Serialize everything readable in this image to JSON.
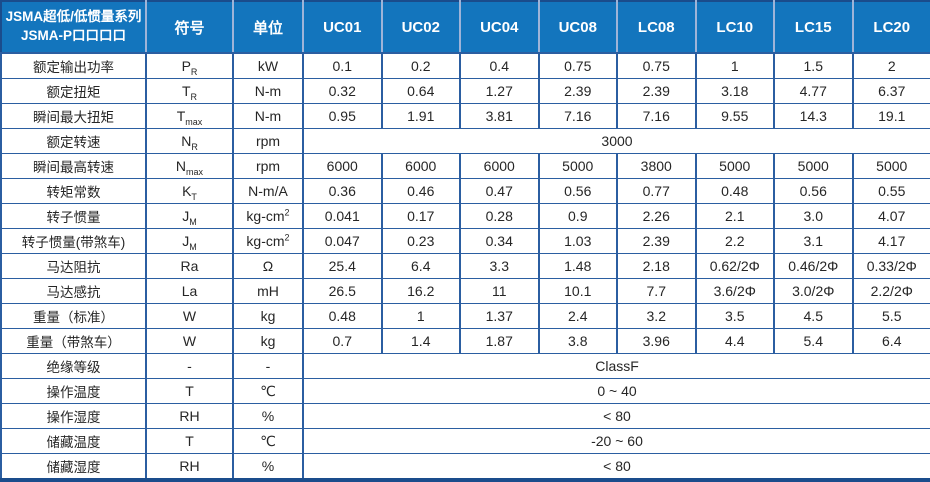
{
  "colors": {
    "header_bg": "#1375bd",
    "header_text": "#ffffff",
    "grid_border": "#2b5ea1",
    "outer_border": "#1a4c8c",
    "header_divider": "#9fb4d8",
    "body_text": "#262626"
  },
  "table": {
    "corner": {
      "line1": "JSMA超低/低惯量系列",
      "line2": "JSMA-P口口口口"
    },
    "symbol_header": "符号",
    "unit_header": "单位",
    "models": [
      "UC01",
      "UC02",
      "UC04",
      "UC08",
      "LC08",
      "LC10",
      "LC15",
      "LC20"
    ],
    "rows": [
      {
        "label": "额定输出功率",
        "sym": "P",
        "sym_sub": "R",
        "unit": "kW",
        "unit_sup": "",
        "values": [
          "0.1",
          "0.2",
          "0.4",
          "0.75",
          "0.75",
          "1",
          "1.5",
          "2"
        ]
      },
      {
        "label": "额定扭矩",
        "sym": "T",
        "sym_sub": "R",
        "unit": "N-m",
        "unit_sup": "",
        "values": [
          "0.32",
          "0.64",
          "1.27",
          "2.39",
          "2.39",
          "3.18",
          "4.77",
          "6.37"
        ]
      },
      {
        "label": "瞬间最大扭矩",
        "sym": "T",
        "sym_sub": "max",
        "unit": "N-m",
        "unit_sup": "",
        "values": [
          "0.95",
          "1.91",
          "3.81",
          "7.16",
          "7.16",
          "9.55",
          "14.3",
          "19.1"
        ]
      },
      {
        "label": "额定转速",
        "sym": "N",
        "sym_sub": "R",
        "unit": "rpm",
        "unit_sup": "",
        "span": "3000"
      },
      {
        "label": "瞬间最高转速",
        "sym": "N",
        "sym_sub": "max",
        "unit": "rpm",
        "unit_sup": "",
        "values": [
          "6000",
          "6000",
          "6000",
          "5000",
          "3800",
          "5000",
          "5000",
          "5000"
        ]
      },
      {
        "label": "转矩常数",
        "sym": "K",
        "sym_sub": "T",
        "unit": "N-m/A",
        "unit_sup": "",
        "values": [
          "0.36",
          "0.46",
          "0.47",
          "0.56",
          "0.77",
          "0.48",
          "0.56",
          "0.55"
        ]
      },
      {
        "label": "转子惯量",
        "sym": "J",
        "sym_sub": "M",
        "unit": "kg-cm",
        "unit_sup": "2",
        "values": [
          "0.041",
          "0.17",
          "0.28",
          "0.9",
          "2.26",
          "2.1",
          "3.0",
          "4.07"
        ]
      },
      {
        "label": "转子惯量(带煞车)",
        "sym": "J",
        "sym_sub": "M",
        "unit": "kg-cm",
        "unit_sup": "2",
        "values": [
          "0.047",
          "0.23",
          "0.34",
          "1.03",
          "2.39",
          "2.2",
          "3.1",
          "4.17"
        ]
      },
      {
        "label": "马达阻抗",
        "sym": "Ra",
        "sym_sub": "",
        "unit": "Ω",
        "unit_sup": "",
        "values": [
          "25.4",
          "6.4",
          "3.3",
          "1.48",
          "2.18",
          "0.62/2Φ",
          "0.46/2Φ",
          "0.33/2Φ"
        ]
      },
      {
        "label": "马达感抗",
        "sym": "La",
        "sym_sub": "",
        "unit": "mH",
        "unit_sup": "",
        "values": [
          "26.5",
          "16.2",
          "11",
          "10.1",
          "7.7",
          "3.6/2Φ",
          "3.0/2Φ",
          "2.2/2Φ"
        ]
      },
      {
        "label": "重量（标准）",
        "sym": "W",
        "sym_sub": "",
        "unit": "kg",
        "unit_sup": "",
        "values": [
          "0.48",
          "1",
          "1.37",
          "2.4",
          "3.2",
          "3.5",
          "4.5",
          "5.5"
        ]
      },
      {
        "label": "重量（带煞车）",
        "sym": "W",
        "sym_sub": "",
        "unit": "kg",
        "unit_sup": "",
        "values": [
          "0.7",
          "1.4",
          "1.87",
          "3.8",
          "3.96",
          "4.4",
          "5.4",
          "6.4"
        ]
      },
      {
        "label": "绝缘等级",
        "sym": "-",
        "sym_sub": "",
        "unit": "-",
        "unit_sup": "",
        "span": "ClassF"
      },
      {
        "label": "操作温度",
        "sym": "T",
        "sym_sub": "",
        "unit": "℃",
        "unit_sup": "",
        "span": "0 ~ 40"
      },
      {
        "label": "操作湿度",
        "sym": "RH",
        "sym_sub": "",
        "unit": "%",
        "unit_sup": "",
        "span": "< 80"
      },
      {
        "label": "储藏温度",
        "sym": "T",
        "sym_sub": "",
        "unit": "℃",
        "unit_sup": "",
        "span": "-20 ~ 60"
      },
      {
        "label": "储藏湿度",
        "sym": "RH",
        "sym_sub": "",
        "unit": "%",
        "unit_sup": "",
        "span": "< 80"
      }
    ]
  }
}
